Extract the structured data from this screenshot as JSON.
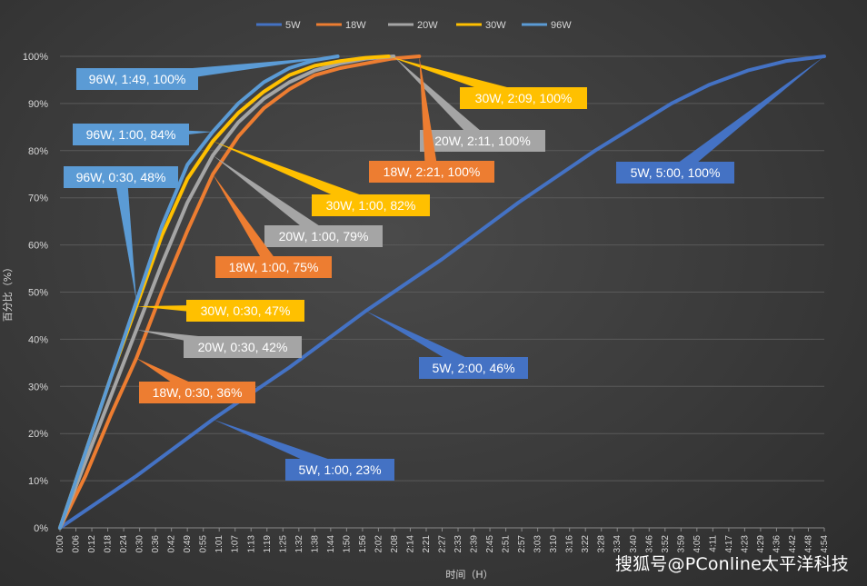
{
  "chart_data": {
    "type": "line",
    "xlabel": "时间（H）",
    "ylabel": "百分比（%）",
    "ylim": [
      0,
      100
    ],
    "yticks": [
      "0%",
      "10%",
      "20%",
      "30%",
      "40%",
      "50%",
      "60%",
      "70%",
      "80%",
      "90%",
      "100%"
    ],
    "xticks": [
      "0:00",
      "0:06",
      "0:12",
      "0:18",
      "0:24",
      "0:30",
      "0:36",
      "0:42",
      "0:49",
      "0:55",
      "1:01",
      "1:07",
      "1:13",
      "1:19",
      "1:25",
      "1:32",
      "1:38",
      "1:44",
      "1:50",
      "1:56",
      "2:02",
      "2:08",
      "2:14",
      "2:21",
      "2:27",
      "2:33",
      "2:39",
      "2:45",
      "2:51",
      "2:57",
      "3:03",
      "3:10",
      "3:16",
      "3:22",
      "3:28",
      "3:34",
      "3:40",
      "3:46",
      "3:52",
      "3:59",
      "4:05",
      "4:11",
      "4:17",
      "4:23",
      "4:29",
      "4:36",
      "4:42",
      "4:48",
      "4:54"
    ],
    "xlim_min": [
      0,
      300
    ],
    "legend_position": "top",
    "grid": true,
    "series": [
      {
        "name": "5W",
        "color": "#4472c4",
        "points": [
          [
            0,
            0
          ],
          [
            30,
            11
          ],
          [
            60,
            23
          ],
          [
            90,
            34
          ],
          [
            120,
            46
          ],
          [
            150,
            57
          ],
          [
            180,
            69
          ],
          [
            210,
            80
          ],
          [
            240,
            90
          ],
          [
            255,
            94
          ],
          [
            270,
            97
          ],
          [
            285,
            99
          ],
          [
            300,
            100
          ]
        ]
      },
      {
        "name": "18W",
        "color": "#ed7d31",
        "points": [
          [
            0,
            0
          ],
          [
            10,
            11
          ],
          [
            20,
            24
          ],
          [
            30,
            36
          ],
          [
            40,
            50
          ],
          [
            50,
            63
          ],
          [
            60,
            75
          ],
          [
            70,
            83
          ],
          [
            80,
            89
          ],
          [
            90,
            93
          ],
          [
            100,
            96
          ],
          [
            110,
            97.5
          ],
          [
            120,
            98.5
          ],
          [
            130,
            99.5
          ],
          [
            141,
            100
          ]
        ]
      },
      {
        "name": "20W",
        "color": "#a5a5a5",
        "points": [
          [
            0,
            0
          ],
          [
            10,
            14
          ],
          [
            20,
            28
          ],
          [
            30,
            42
          ],
          [
            40,
            56
          ],
          [
            50,
            69
          ],
          [
            60,
            79
          ],
          [
            70,
            86
          ],
          [
            80,
            91
          ],
          [
            90,
            94.5
          ],
          [
            100,
            97
          ],
          [
            110,
            98.5
          ],
          [
            120,
            99.5
          ],
          [
            131,
            100
          ]
        ]
      },
      {
        "name": "30W",
        "color": "#ffc000",
        "points": [
          [
            0,
            0
          ],
          [
            10,
            16
          ],
          [
            20,
            32
          ],
          [
            30,
            47
          ],
          [
            40,
            62
          ],
          [
            50,
            74
          ],
          [
            60,
            82
          ],
          [
            70,
            88
          ],
          [
            80,
            92.5
          ],
          [
            90,
            96
          ],
          [
            100,
            98
          ],
          [
            110,
            99
          ],
          [
            120,
            99.7
          ],
          [
            129,
            100
          ]
        ]
      },
      {
        "name": "96W",
        "color": "#5b9bd5",
        "points": [
          [
            0,
            0
          ],
          [
            10,
            16
          ],
          [
            20,
            32
          ],
          [
            30,
            48
          ],
          [
            40,
            64
          ],
          [
            50,
            77
          ],
          [
            60,
            84
          ],
          [
            70,
            90
          ],
          [
            80,
            94.5
          ],
          [
            90,
            97.5
          ],
          [
            100,
            99.2
          ],
          [
            109,
            100
          ]
        ]
      }
    ],
    "annotations": [
      {
        "text": "96W, 1:49, 100%",
        "color": "#5b9bd5",
        "at": [
          109,
          100
        ]
      },
      {
        "text": "96W, 1:00, 84%",
        "color": "#5b9bd5",
        "at": [
          60,
          84
        ]
      },
      {
        "text": "96W, 0:30, 48%",
        "color": "#5b9bd5",
        "at": [
          30,
          48
        ]
      },
      {
        "text": "30W, 2:09, 100%",
        "color": "#ffc000",
        "at": [
          129,
          100
        ]
      },
      {
        "text": "20W, 2:11, 100%",
        "color": "#a5a5a5",
        "at": [
          131,
          100
        ]
      },
      {
        "text": "18W, 2:21, 100%",
        "color": "#ed7d31",
        "at": [
          141,
          100
        ]
      },
      {
        "text": "5W, 5:00, 100%",
        "color": "#4472c4",
        "at": [
          300,
          100
        ]
      },
      {
        "text": "30W, 1:00, 82%",
        "color": "#ffc000",
        "at": [
          60,
          82
        ]
      },
      {
        "text": "20W, 1:00, 79%",
        "color": "#a5a5a5",
        "at": [
          60,
          79
        ]
      },
      {
        "text": "18W, 1:00, 75%",
        "color": "#ed7d31",
        "at": [
          60,
          75
        ]
      },
      {
        "text": "30W, 0:30, 47%",
        "color": "#ffc000",
        "at": [
          30,
          47
        ]
      },
      {
        "text": "20W, 0:30, 42%",
        "color": "#a5a5a5",
        "at": [
          30,
          42
        ]
      },
      {
        "text": "18W, 0:30, 36%",
        "color": "#ed7d31",
        "at": [
          30,
          36
        ]
      },
      {
        "text": "5W, 2:00, 46%",
        "color": "#4472c4",
        "at": [
          120,
          46
        ]
      },
      {
        "text": "5W, 1:00, 23%",
        "color": "#4472c4",
        "at": [
          60,
          23
        ]
      }
    ]
  },
  "watermark": "搜狐号@PConline太平洋科技"
}
